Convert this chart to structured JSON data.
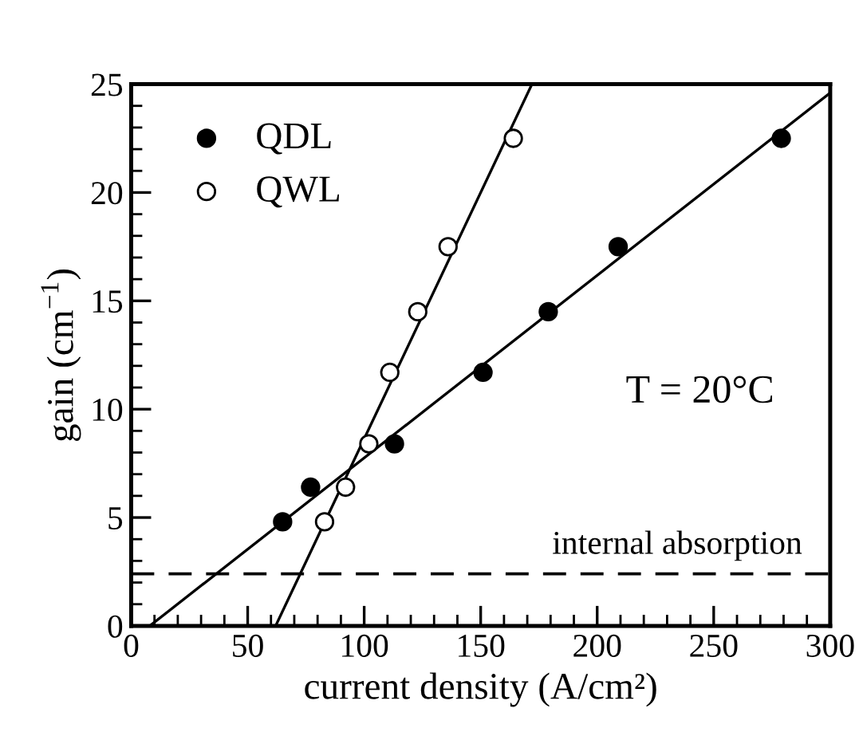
{
  "chart_data": {
    "type": "scatter",
    "xlabel": "current density (A/cm²)",
    "ylabel": "gain (cm$^{−1}$)",
    "xlim": [
      0,
      300
    ],
    "ylim": [
      0,
      25
    ],
    "xticks": [
      0,
      50,
      100,
      150,
      200,
      250,
      300
    ],
    "yticks": [
      0,
      5,
      10,
      15,
      20,
      25
    ],
    "grid": false,
    "legend": "top left",
    "annotations": [
      "T = 20°C"
    ],
    "ref_lines": [
      {
        "axis": "y",
        "value": 2.4,
        "label": "internal absorption",
        "color": "#000000",
        "line_style": "dashed"
      }
    ],
    "series": [
      {
        "name": "QDL",
        "marker": "circle",
        "color": "#000000",
        "x": [
          65,
          77,
          113,
          151,
          179,
          209,
          279
        ],
        "values": [
          4.8,
          6.4,
          8.4,
          11.7,
          14.5,
          17.5,
          22.5
        ]
      },
      {
        "name": "QWL",
        "marker": "circle",
        "color": "#ffffff",
        "x": [
          83,
          92,
          102,
          111,
          123,
          136,
          164
        ],
        "values": [
          4.8,
          6.4,
          8.4,
          11.7,
          14.5,
          17.5,
          22.5
        ]
      },
      {
        "type": "line",
        "marker": "none",
        "color": "#000000",
        "x": [
          8,
          300
        ],
        "values": [
          0,
          24.6
        ]
      },
      {
        "type": "line",
        "marker": "none",
        "color": "#000000",
        "x": [
          62,
          172
        ],
        "values": [
          0,
          25
        ]
      }
    ]
  }
}
